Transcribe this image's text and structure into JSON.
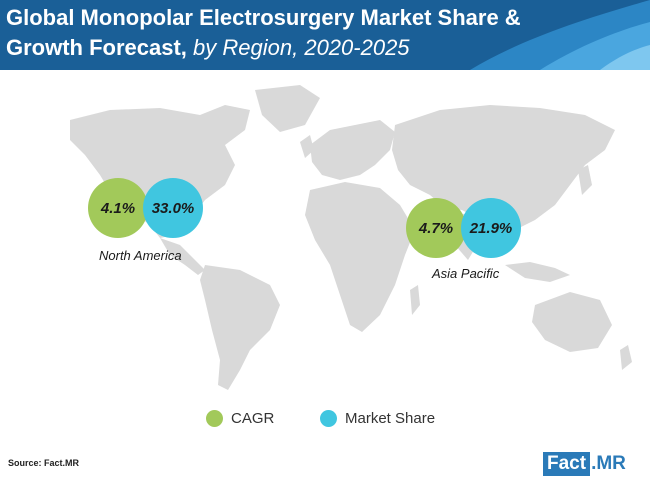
{
  "header": {
    "title_main": "Global Monopolar Electrosurgery Market Share & Growth Forecast,",
    "title_sub": "by Region, 2020-2025"
  },
  "colors": {
    "cagr": "#a2c95a",
    "market_share": "#40c6e0",
    "header_bg": "#1a5f97",
    "map": "#d9d9d9"
  },
  "chart_data": {
    "type": "bubble-map",
    "title": "Global Monopolar Electrosurgery Market Share & Growth Forecast, by Region, 2020-2025",
    "legend": [
      "CAGR",
      "Market Share"
    ],
    "regions": [
      {
        "name": "North America",
        "cagr": "4.1%",
        "market_share": "33.0%"
      },
      {
        "name": "Asia Pacific",
        "cagr": "4.7%",
        "market_share": "21.9%"
      }
    ]
  },
  "footer": {
    "source": "Source: Fact.MR",
    "logo_box": "Fact",
    "logo_rest": ".MR"
  }
}
